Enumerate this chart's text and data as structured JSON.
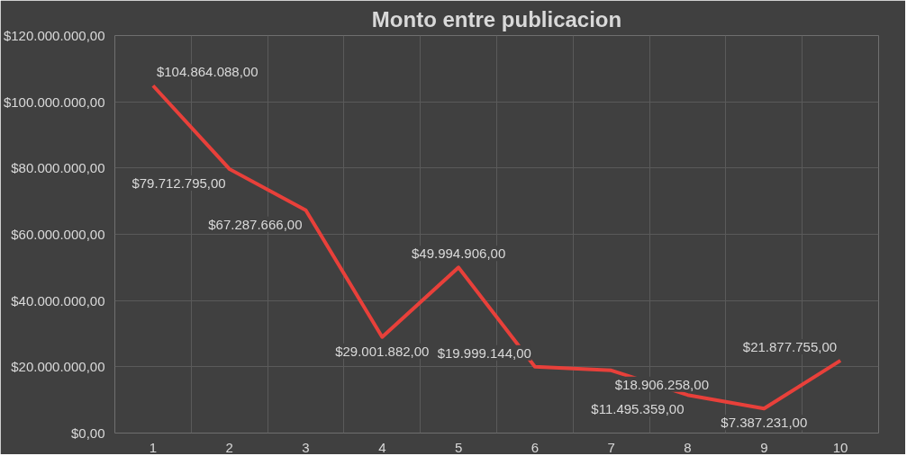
{
  "chart_data": {
    "type": "line",
    "title": "Monto entre publicacion",
    "categories": [
      "1",
      "2",
      "3",
      "4",
      "5",
      "6",
      "7",
      "8",
      "9",
      "10"
    ],
    "series": [
      {
        "color": "#e8403a",
        "values": [
          104864088,
          79712795,
          67287666,
          29001882,
          49994906,
          19999144,
          18906258,
          11495359,
          7387231,
          21877755
        ],
        "value_labels": [
          "$104.864.088,00",
          "$79.712.795,00",
          "$67.287.666,00",
          "$29.001.882,00",
          "$49.994.906,00",
          "$19.999.144,00",
          "$18.906.258,00",
          "$11.495.359,00",
          "$7.387.231,00",
          "$21.877.755,00"
        ]
      }
    ],
    "ylim": [
      0,
      120000000
    ],
    "yticks": [
      {
        "value": 0,
        "label": "$0,00"
      },
      {
        "value": 20000000,
        "label": "$20.000.000,00"
      },
      {
        "value": 40000000,
        "label": "$40.000.000,00"
      },
      {
        "value": 60000000,
        "label": "$60.000.000,00"
      },
      {
        "value": 80000000,
        "label": "$80.000.000,00"
      },
      {
        "value": 100000000,
        "label": "$100.000.000,00"
      },
      {
        "value": 120000000,
        "label": "$120.000.000,00"
      }
    ],
    "grid": true,
    "marker": "none",
    "line_style": "solid",
    "legend": false
  }
}
